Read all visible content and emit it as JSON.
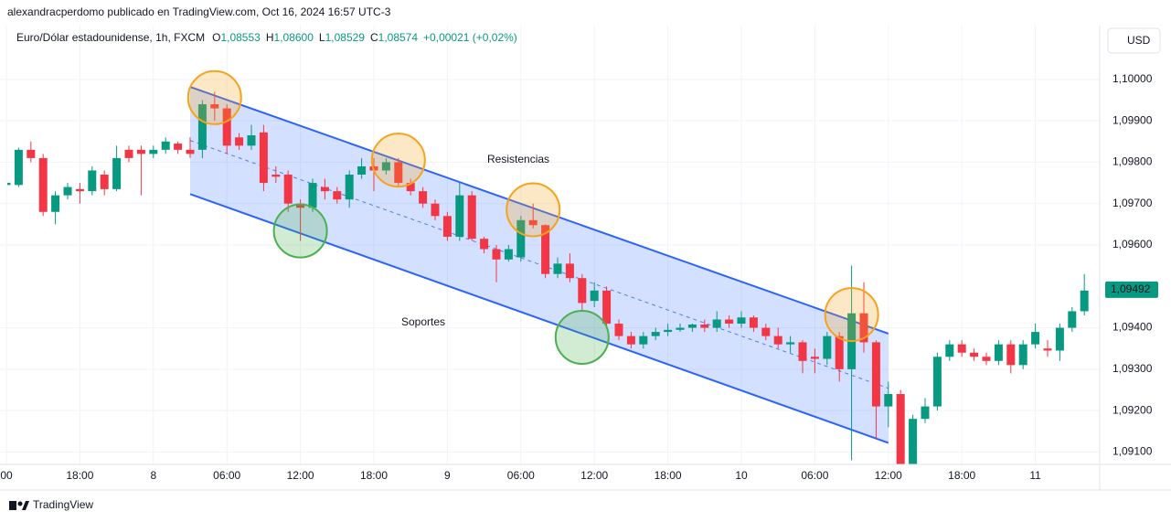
{
  "header": {
    "byline": "alexandracperdomo publicado en TradingView.com, Oct 16, 2024 16:57 UTC-3",
    "symbol": "Euro/Dólar estadounidense, 1h, FXCM",
    "ohlc": [
      {
        "label": "O",
        "value": "1,08553"
      },
      {
        "label": "H",
        "value": "1,08600"
      },
      {
        "label": "L",
        "value": "1,08529"
      },
      {
        "label": "C",
        "value": "1,08574"
      }
    ],
    "change": "+0,00021 (+0,02%)",
    "currency": "USD"
  },
  "footer": {
    "brand": "TradingView"
  },
  "chart_data": {
    "type": "candlestick",
    "up_color": "#089981",
    "down_color": "#f23645",
    "grid": true,
    "categories": [
      "00",
      null,
      null,
      null,
      null,
      null,
      "18:00",
      null,
      null,
      null,
      null,
      null,
      "8",
      null,
      null,
      null,
      null,
      null,
      "06:00",
      null,
      null,
      null,
      null,
      null,
      "12:00",
      null,
      null,
      null,
      null,
      null,
      "18:00",
      null,
      null,
      null,
      null,
      null,
      "9",
      null,
      null,
      null,
      null,
      null,
      "06:00",
      null,
      null,
      null,
      null,
      null,
      "12:00",
      null,
      null,
      null,
      null,
      null,
      "18:00",
      null,
      null,
      null,
      null,
      null,
      "10",
      null,
      null,
      null,
      null,
      null,
      "06:00",
      null,
      null,
      null,
      null,
      null,
      "12:00",
      null,
      null,
      null,
      null,
      null,
      "18:00",
      null,
      null,
      null,
      null,
      null,
      "11",
      null,
      null,
      null,
      null
    ],
    "open": [
      1.09745,
      1.09745,
      1.0983,
      1.0981,
      1.0968,
      1.0972,
      1.09735,
      1.0973,
      1.0977,
      1.09735,
      1.0983,
      1.0983,
      1.0982,
      1.0983,
      1.09845,
      1.0983,
      1.0983,
      1.0994,
      1.0993,
      1.0986,
      1.0984,
      1.09872,
      1.0977,
      1.0977,
      1.097,
      1.0969,
      1.0974,
      1.0973,
      1.0971,
      1.0977,
      1.0979,
      1.0978,
      1.098,
      1.0975,
      1.0973,
      1.097,
      1.0967,
      1.0962,
      1.0972,
      1.09615,
      1.0959,
      1.09565,
      1.0957,
      1.0966,
      1.09648,
      1.0953,
      1.09555,
      1.0952,
      1.09465,
      1.0949,
      1.0941,
      1.0938,
      1.0936,
      1.0938,
      1.0939,
      1.09395,
      1.094,
      1.09408,
      1.094,
      1.0942,
      1.0941,
      1.09425,
      1.094,
      1.0938,
      1.0936,
      1.09365,
      1.0933,
      1.09325,
      1.0938,
      1.093,
      1.09435,
      1.09365,
      1.0921,
      1.0924,
      1.0905,
      1.0918,
      1.0921,
      1.0933,
      1.0936,
      1.0934,
      1.0933,
      1.0932,
      1.0936,
      1.0931,
      1.0936,
      1.0935,
      1.09345,
      1.094,
      1.0944
    ],
    "high": [
      1.0976,
      1.09835,
      1.0985,
      1.0982,
      1.0973,
      1.0975,
      1.0975,
      1.0979,
      1.0978,
      1.0984,
      1.0984,
      1.0984,
      1.0984,
      1.0986,
      1.0985,
      1.0986,
      1.0995,
      1.0997,
      1.0994,
      1.0987,
      1.0989,
      1.0989,
      1.0979,
      1.0978,
      1.0971,
      1.0976,
      1.0976,
      1.0974,
      1.0978,
      1.0981,
      1.0981,
      1.0981,
      1.0981,
      1.0976,
      1.0974,
      1.0971,
      1.0968,
      1.0975,
      1.0973,
      1.0962,
      1.096,
      1.096,
      1.0967,
      1.097,
      1.0965,
      1.0957,
      1.0958,
      1.0953,
      1.0951,
      1.095,
      1.0942,
      1.0939,
      1.0939,
      1.094,
      1.0941,
      1.0941,
      1.0941,
      1.0942,
      1.0944,
      1.0943,
      1.0944,
      1.0943,
      1.0941,
      1.094,
      1.0938,
      1.0937,
      1.0935,
      1.0939,
      1.0939,
      1.0955,
      1.0951,
      1.0937,
      1.0927,
      1.0925,
      1.0919,
      1.0923,
      1.0934,
      1.0937,
      1.0937,
      1.0935,
      1.0934,
      1.0937,
      1.0937,
      1.0937,
      1.0941,
      1.0937,
      1.0941,
      1.0945,
      1.0953
    ],
    "low": [
      1.0974,
      1.0974,
      1.098,
      1.0967,
      1.0965,
      1.0971,
      1.097,
      1.0972,
      1.0972,
      1.0973,
      1.098,
      1.0972,
      1.0981,
      1.0982,
      1.0982,
      1.0981,
      1.0981,
      1.099,
      1.0982,
      1.0983,
      1.0983,
      1.0973,
      1.0975,
      1.0968,
      1.0961,
      1.0968,
      1.0971,
      1.097,
      1.0969,
      1.0976,
      1.0973,
      1.0977,
      1.0974,
      1.0972,
      1.0969,
      1.0966,
      1.0961,
      1.0961,
      1.0961,
      1.0958,
      1.0951,
      1.0956,
      1.0956,
      1.0964,
      1.0952,
      1.0952,
      1.0951,
      1.0944,
      1.0945,
      1.094,
      1.0937,
      1.0935,
      1.0935,
      1.0937,
      1.0938,
      1.0939,
      1.0939,
      1.0939,
      1.0939,
      1.094,
      1.094,
      1.0939,
      1.0937,
      1.0935,
      1.0934,
      1.0929,
      1.0929,
      1.0931,
      1.0927,
      1.0908,
      1.0934,
      1.0913,
      1.0916,
      1.0904,
      1.0904,
      1.0917,
      1.092,
      1.0932,
      1.0933,
      1.0932,
      1.0931,
      1.0931,
      1.0929,
      1.093,
      1.0935,
      1.0933,
      1.0932,
      1.0939,
      1.0943
    ],
    "close": [
      1.0975,
      1.0983,
      1.0981,
      1.0968,
      1.0972,
      1.0974,
      1.0973,
      1.0978,
      1.09735,
      1.0981,
      1.0981,
      1.0982,
      1.0983,
      1.0985,
      1.0983,
      1.0982,
      1.0994,
      1.0993,
      1.0984,
      1.0984,
      1.09865,
      1.0975,
      1.09765,
      1.097,
      1.0969,
      1.0975,
      1.0973,
      1.0971,
      1.0977,
      1.0979,
      1.0978,
      1.098,
      1.0975,
      1.0973,
      1.097,
      1.0967,
      1.0962,
      1.0972,
      1.09615,
      1.0959,
      1.09565,
      1.0959,
      1.0966,
      1.09648,
      1.0953,
      1.09555,
      1.0952,
      1.0946,
      1.0949,
      1.0941,
      1.0938,
      1.0936,
      1.0938,
      1.0939,
      1.09395,
      1.094,
      1.09408,
      1.094,
      1.0942,
      1.0941,
      1.09425,
      1.094,
      1.0938,
      1.0936,
      1.09365,
      1.0932,
      1.09325,
      1.0938,
      1.093,
      1.09435,
      1.09365,
      1.0921,
      1.0924,
      1.0905,
      1.0918,
      1.0921,
      1.0933,
      1.0936,
      1.0934,
      1.0933,
      1.0932,
      1.0936,
      1.0931,
      1.0936,
      1.0939,
      1.09345,
      1.094,
      1.0944,
      1.0949
    ],
    "ylim": [
      1.0907,
      1.1013
    ],
    "yticks": [
      {
        "value": 1.1,
        "label": "1,10000"
      },
      {
        "value": 1.099,
        "label": "1,09900"
      },
      {
        "value": 1.098,
        "label": "1,09800"
      },
      {
        "value": 1.097,
        "label": "1,09700"
      },
      {
        "value": 1.096,
        "label": "1,09600"
      },
      {
        "value": 1.094,
        "label": "1,09400"
      },
      {
        "value": 1.093,
        "label": "1,09300"
      },
      {
        "value": 1.092,
        "label": "1,09200"
      },
      {
        "value": 1.091,
        "label": "1,09100"
      }
    ],
    "last_price": {
      "value": 1.09492,
      "label": "1,09492"
    },
    "channel": {
      "x": [
        15,
        72
      ],
      "upper": [
        1.09982,
        1.09386
      ],
      "lower": [
        1.09723,
        1.09122
      ],
      "color": "#2962ff"
    },
    "resistance": {
      "label": "Resistencias",
      "color": "#f7a21b",
      "x": [
        17,
        32,
        43,
        69
      ],
      "y": [
        1.09956,
        1.09805,
        1.09685,
        1.09432
      ]
    },
    "support": {
      "label": "Soportes",
      "color": "#4caf50",
      "x": [
        24,
        47
      ],
      "y": [
        1.09634,
        1.09377
      ]
    }
  }
}
